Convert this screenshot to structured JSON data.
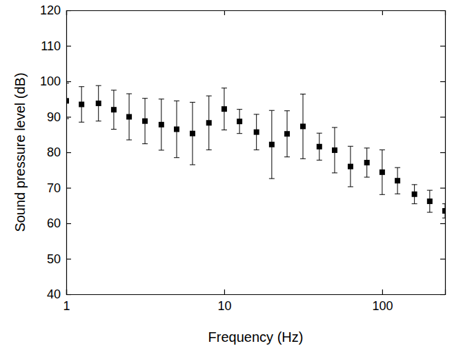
{
  "chart_data": {
    "type": "scatter",
    "x_label": "Frequency (Hz)",
    "y_label": "Sound pressure level (dB)",
    "x": [
      1,
      1.25,
      1.6,
      2,
      2.5,
      3.15,
      4,
      5,
      6.3,
      8,
      10,
      12.5,
      16,
      20,
      25,
      31.5,
      40,
      50,
      63,
      80,
      100,
      125,
      160,
      200,
      250
    ],
    "values": [
      94.5,
      93.5,
      93.8,
      92,
      90,
      88.8,
      87.8,
      86.5,
      85.3,
      88.3,
      92.2,
      88.7,
      85.7,
      82.2,
      85.2,
      87.3,
      81.6,
      80.6,
      76,
      77.1,
      74.4,
      72,
      68.2,
      66.2,
      63.5
    ],
    "errors": [
      5,
      5,
      5,
      5.5,
      6.5,
      6.4,
      7.2,
      8,
      8.8,
      7.6,
      5.9,
      3.4,
      5,
      9.6,
      6.5,
      9.1,
      3.8,
      6.4,
      5.7,
      4.1,
      6.3,
      3.7,
      2.7,
      3.1,
      2
    ],
    "xlim": [
      1,
      250
    ],
    "ylim": [
      40,
      120
    ],
    "xticks": [
      1,
      10,
      100
    ],
    "yticks": [
      40,
      50,
      60,
      70,
      80,
      90,
      100,
      110,
      120
    ],
    "log": "x",
    "grid": false,
    "color": "#000000",
    "marker": "square"
  }
}
